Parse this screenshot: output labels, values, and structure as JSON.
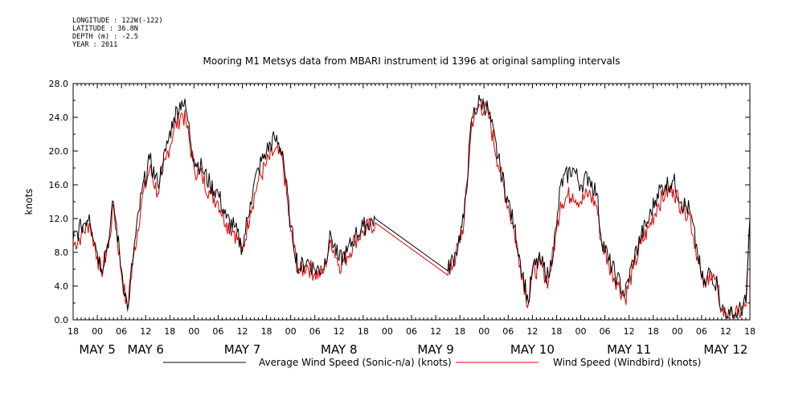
{
  "header": {
    "longitude": "LONGITUDE : 122W(-122)",
    "latitude": "LATITUDE : 36.8N",
    "depth": "DEPTH (m) : -2.5",
    "year": "YEAR : 2011"
  },
  "chart_data": {
    "type": "line",
    "title": "Mooring M1 Metsys data from MBARI instrument id 1396 at original sampling intervals",
    "ylabel": "knots",
    "ylim": [
      0,
      28
    ],
    "yticks": [
      "0.0",
      "4.0",
      "8.0",
      "12.0",
      "16.0",
      "20.0",
      "24.0",
      "28.0"
    ],
    "xlim_hours": [
      0,
      168
    ],
    "xticks": [
      "18",
      "00",
      "06",
      "12",
      "18",
      "00",
      "06",
      "12",
      "18",
      "00",
      "06",
      "12",
      "18",
      "00",
      "06",
      "12",
      "18",
      "00",
      "06",
      "12",
      "18",
      "00",
      "06",
      "12",
      "18",
      "00",
      "06",
      "12",
      "18"
    ],
    "day_labels": [
      {
        "label": "MAY  5",
        "hour": 6
      },
      {
        "label": "MAY  6",
        "hour": 18
      },
      {
        "label": "MAY  7",
        "hour": 42
      },
      {
        "label": "MAY  8",
        "hour": 66
      },
      {
        "label": "MAY  9",
        "hour": 90
      },
      {
        "label": "MAY 10",
        "hour": 114
      },
      {
        "label": "MAY 11",
        "hour": 138
      },
      {
        "label": "MAY 12",
        "hour": 162
      }
    ],
    "legend": "bottom",
    "series": [
      {
        "name": "Average Wind Speed (Sonic-n/a) (knots)",
        "color": "#000000",
        "points": [
          [
            0,
            9.5
          ],
          [
            2,
            11
          ],
          [
            4,
            12.5
          ],
          [
            6,
            8
          ],
          [
            7,
            6
          ],
          [
            9,
            10
          ],
          [
            10,
            14
          ],
          [
            12,
            6
          ],
          [
            13.5,
            1.3
          ],
          [
            15,
            8
          ],
          [
            17,
            15
          ],
          [
            19,
            19
          ],
          [
            21,
            16
          ],
          [
            23,
            20
          ],
          [
            25,
            24
          ],
          [
            27,
            26
          ],
          [
            28,
            25
          ],
          [
            30,
            19
          ],
          [
            32,
            18
          ],
          [
            34,
            16
          ],
          [
            36,
            15
          ],
          [
            38,
            12
          ],
          [
            40,
            11
          ],
          [
            42,
            8.5
          ],
          [
            44,
            14
          ],
          [
            46,
            18
          ],
          [
            48,
            20
          ],
          [
            50,
            21.5
          ],
          [
            52,
            20
          ],
          [
            54,
            11
          ],
          [
            56,
            6
          ],
          [
            58,
            7
          ],
          [
            60,
            6
          ],
          [
            62,
            6
          ],
          [
            64,
            10
          ],
          [
            66,
            7
          ],
          [
            68,
            8
          ],
          [
            70,
            10
          ],
          [
            72,
            11
          ],
          [
            75,
            12
          ],
          [
            93,
            5.8
          ],
          [
            95,
            8
          ],
          [
            97,
            12
          ],
          [
            99,
            24
          ],
          [
            101,
            26
          ],
          [
            103,
            25
          ],
          [
            106,
            18
          ],
          [
            108,
            14
          ],
          [
            109.5,
            11
          ],
          [
            111,
            7
          ],
          [
            113,
            2
          ],
          [
            114,
            6
          ],
          [
            116,
            7
          ],
          [
            118,
            5
          ],
          [
            120,
            11
          ],
          [
            121,
            16
          ],
          [
            124,
            18
          ],
          [
            126,
            16
          ],
          [
            128,
            17
          ],
          [
            130,
            15
          ],
          [
            131,
            10
          ],
          [
            133,
            7
          ],
          [
            135,
            5
          ],
          [
            137,
            3
          ],
          [
            139,
            7
          ],
          [
            141,
            10
          ],
          [
            143,
            12
          ],
          [
            145,
            15
          ],
          [
            147,
            16
          ],
          [
            149,
            16.5
          ],
          [
            151,
            14
          ],
          [
            153,
            13
          ],
          [
            155,
            8
          ],
          [
            156,
            5
          ],
          [
            157,
            4
          ],
          [
            158,
            6
          ],
          [
            160,
            4
          ],
          [
            161,
            1.2
          ],
          [
            163,
            0.5
          ],
          [
            165,
            0.8
          ],
          [
            167,
            2
          ],
          [
            168,
            12
          ]
        ]
      },
      {
        "name": "Wind Speed (Windbird) (knots)",
        "color": "#e00000",
        "points": [
          [
            0,
            8.8
          ],
          [
            2,
            10
          ],
          [
            4,
            11.5
          ],
          [
            6,
            7.5
          ],
          [
            7,
            5.5
          ],
          [
            9,
            9.5
          ],
          [
            10,
            13.5
          ],
          [
            12,
            5.5
          ],
          [
            13.5,
            1
          ],
          [
            15,
            7.5
          ],
          [
            17,
            14
          ],
          [
            19,
            18
          ],
          [
            21,
            15
          ],
          [
            23,
            19
          ],
          [
            25,
            22.5
          ],
          [
            27,
            24.5
          ],
          [
            28,
            23.5
          ],
          [
            30,
            18
          ],
          [
            32,
            17
          ],
          [
            34,
            15
          ],
          [
            36,
            14
          ],
          [
            38,
            11.5
          ],
          [
            40,
            10.5
          ],
          [
            42,
            8
          ],
          [
            44,
            13
          ],
          [
            46,
            16.5
          ],
          [
            48,
            18.5
          ],
          [
            50,
            20
          ],
          [
            52,
            19
          ],
          [
            54,
            10.5
          ],
          [
            56,
            5.5
          ],
          [
            58,
            6.5
          ],
          [
            60,
            5.5
          ],
          [
            62,
            5.5
          ],
          [
            64,
            9.5
          ],
          [
            66,
            6.5
          ],
          [
            68,
            7.5
          ],
          [
            70,
            9.5
          ],
          [
            72,
            10.5
          ],
          [
            75,
            11.5
          ],
          [
            93,
            5.3
          ],
          [
            95,
            7.5
          ],
          [
            97,
            11.5
          ],
          [
            99,
            23.5
          ],
          [
            101,
            25.5
          ],
          [
            103,
            24.5
          ],
          [
            106,
            17.5
          ],
          [
            108,
            13.5
          ],
          [
            109.5,
            10.5
          ],
          [
            111,
            6.5
          ],
          [
            113,
            1.8
          ],
          [
            114,
            5.5
          ],
          [
            116,
            6.5
          ],
          [
            118,
            4.5
          ],
          [
            120,
            10.5
          ],
          [
            121,
            14
          ],
          [
            124,
            15
          ],
          [
            126,
            14
          ],
          [
            128,
            15
          ],
          [
            130,
            13.5
          ],
          [
            131,
            9.5
          ],
          [
            133,
            6.5
          ],
          [
            135,
            4.5
          ],
          [
            137,
            2.5
          ],
          [
            139,
            6
          ],
          [
            141,
            9
          ],
          [
            143,
            11
          ],
          [
            145,
            13.5
          ],
          [
            147,
            15
          ],
          [
            149,
            15.5
          ],
          [
            151,
            13.5
          ],
          [
            153,
            12.5
          ],
          [
            155,
            7.5
          ],
          [
            156,
            4.8
          ],
          [
            157,
            3.8
          ],
          [
            158,
            5.8
          ],
          [
            160,
            3.8
          ],
          [
            161,
            1
          ],
          [
            163,
            0.4
          ],
          [
            165,
            0.6
          ],
          [
            167,
            1.6
          ],
          [
            168,
            11.5
          ]
        ]
      }
    ]
  }
}
